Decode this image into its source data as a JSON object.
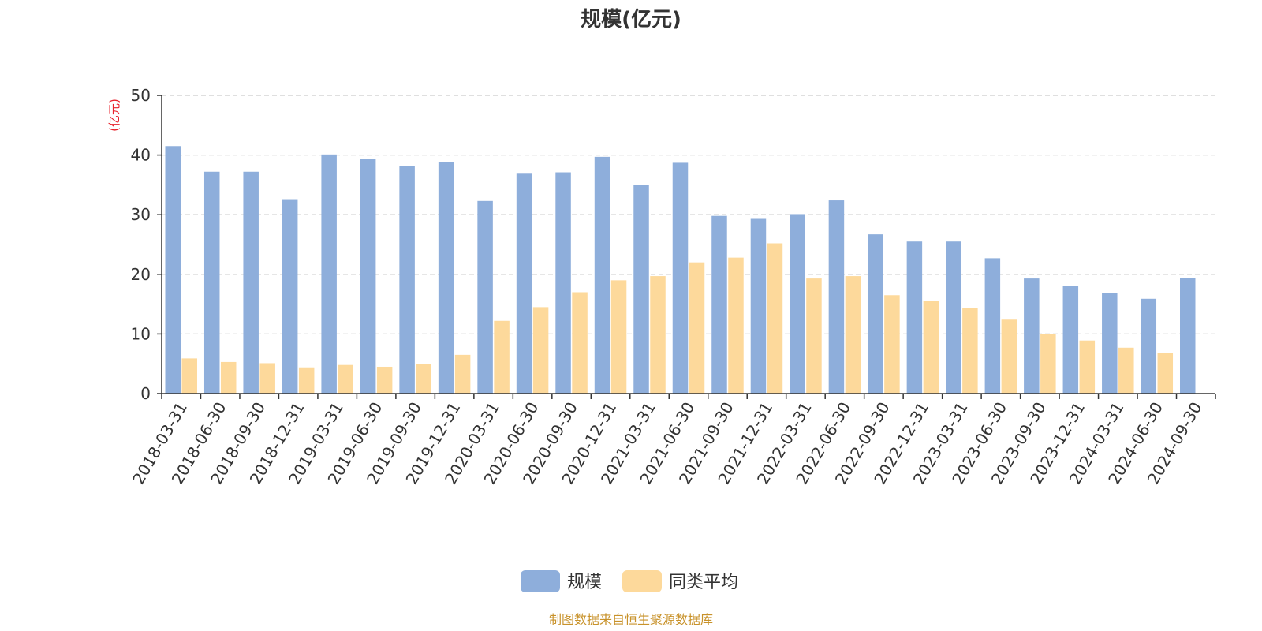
{
  "colors": {
    "series_1": "#8eaedb",
    "series_2": "#fdd99b",
    "unit_label": "#e8232c",
    "source": "#c8922a",
    "grid": "#cccccc",
    "axis": "#333333"
  },
  "source_note": "制图数据来自恒生聚源数据库",
  "chart_data": {
    "type": "bar",
    "title": "规模(亿元)",
    "ylabel": "(亿元)",
    "xlabel": "",
    "ylim": [
      0,
      50
    ],
    "yticks": [
      0,
      10,
      20,
      30,
      40,
      50
    ],
    "grid": true,
    "legend_position": "bottom-center",
    "categories": [
      "2018-03-31",
      "2018-06-30",
      "2018-09-30",
      "2018-12-31",
      "2019-03-31",
      "2019-06-30",
      "2019-09-30",
      "2019-12-31",
      "2020-03-31",
      "2020-06-30",
      "2020-09-30",
      "2020-12-31",
      "2021-03-31",
      "2021-06-30",
      "2021-09-30",
      "2021-12-31",
      "2022-03-31",
      "2022-06-30",
      "2022-09-30",
      "2022-12-31",
      "2023-03-31",
      "2023-06-30",
      "2023-09-30",
      "2023-12-31",
      "2024-03-31",
      "2024-06-30",
      "2024-09-30"
    ],
    "series": [
      {
        "name": "规模",
        "values": [
          41.5,
          37.2,
          37.2,
          32.6,
          40.1,
          39.4,
          38.1,
          38.8,
          32.3,
          37.0,
          37.1,
          39.7,
          35.0,
          38.7,
          29.8,
          29.3,
          30.1,
          32.4,
          26.7,
          25.5,
          25.5,
          22.7,
          19.3,
          18.1,
          16.9,
          15.9,
          19.4
        ]
      },
      {
        "name": "同类平均",
        "values": [
          5.9,
          5.3,
          5.1,
          4.4,
          4.8,
          4.5,
          4.9,
          6.5,
          12.2,
          14.5,
          17.0,
          19.0,
          19.7,
          22.0,
          22.8,
          25.2,
          19.3,
          19.7,
          16.5,
          15.6,
          14.3,
          12.4,
          10.0,
          8.9,
          7.7,
          6.8,
          null
        ]
      }
    ]
  }
}
